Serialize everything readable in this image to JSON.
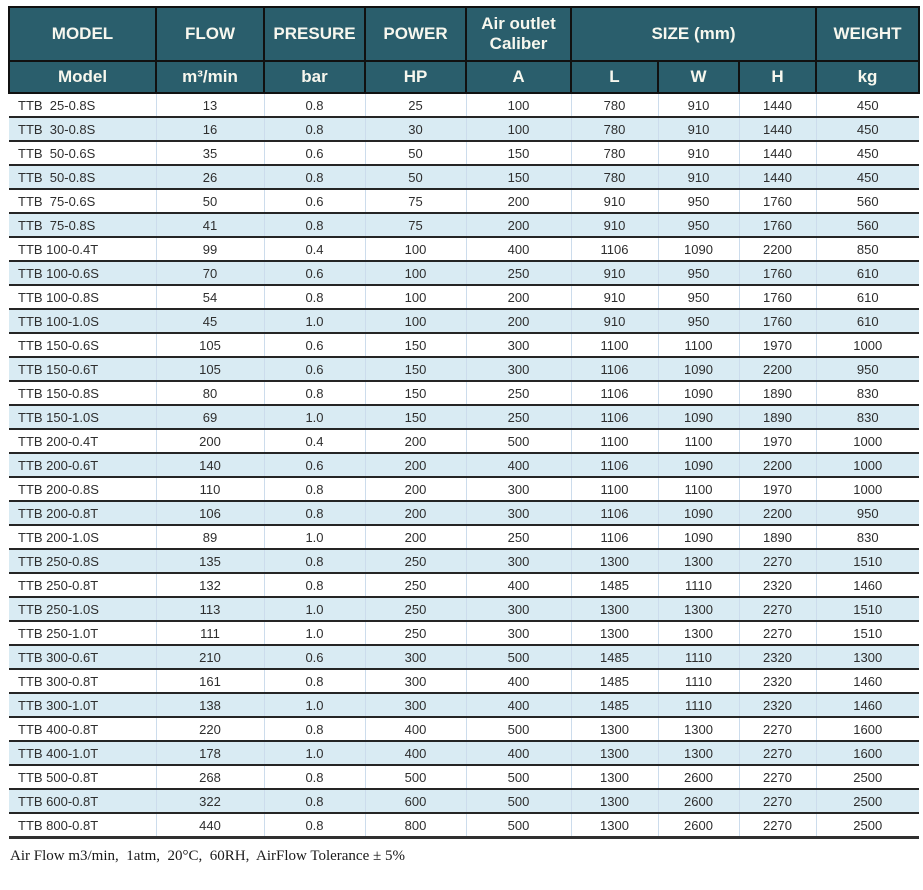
{
  "table": {
    "header_top": [
      {
        "label": "MODEL"
      },
      {
        "label": "FLOW"
      },
      {
        "label": "PRESURE"
      },
      {
        "label": "POWER"
      },
      {
        "label": "Air outlet Caliber"
      },
      {
        "label": "SIZE (mm)"
      },
      {
        "label": "WEIGHT"
      }
    ],
    "header_units": [
      "Model",
      "m³/min",
      "bar",
      "HP",
      "A",
      "L",
      "W",
      "H",
      "kg"
    ],
    "rows": [
      [
        "TTB  25-0.8S",
        "13",
        "0.8",
        "25",
        "100",
        "780",
        "910",
        "1440",
        "450"
      ],
      [
        "TTB  30-0.8S",
        "16",
        "0.8",
        "30",
        "100",
        "780",
        "910",
        "1440",
        "450"
      ],
      [
        "TTB  50-0.6S",
        "35",
        "0.6",
        "50",
        "150",
        "780",
        "910",
        "1440",
        "450"
      ],
      [
        "TTB  50-0.8S",
        "26",
        "0.8",
        "50",
        "150",
        "780",
        "910",
        "1440",
        "450"
      ],
      [
        "TTB  75-0.6S",
        "50",
        "0.6",
        "75",
        "200",
        "910",
        "950",
        "1760",
        "560"
      ],
      [
        "TTB  75-0.8S",
        "41",
        "0.8",
        "75",
        "200",
        "910",
        "950",
        "1760",
        "560"
      ],
      [
        "TTB 100-0.4T",
        "99",
        "0.4",
        "100",
        "400",
        "1106",
        "1090",
        "2200",
        "850"
      ],
      [
        "TTB 100-0.6S",
        "70",
        "0.6",
        "100",
        "250",
        "910",
        "950",
        "1760",
        "610"
      ],
      [
        "TTB 100-0.8S",
        "54",
        "0.8",
        "100",
        "200",
        "910",
        "950",
        "1760",
        "610"
      ],
      [
        "TTB 100-1.0S",
        "45",
        "1.0",
        "100",
        "200",
        "910",
        "950",
        "1760",
        "610"
      ],
      [
        "TTB 150-0.6S",
        "105",
        "0.6",
        "150",
        "300",
        "1100",
        "1100",
        "1970",
        "1000"
      ],
      [
        "TTB 150-0.6T",
        "105",
        "0.6",
        "150",
        "300",
        "1106",
        "1090",
        "2200",
        "950"
      ],
      [
        "TTB 150-0.8S",
        "80",
        "0.8",
        "150",
        "250",
        "1106",
        "1090",
        "1890",
        "830"
      ],
      [
        "TTB 150-1.0S",
        "69",
        "1.0",
        "150",
        "250",
        "1106",
        "1090",
        "1890",
        "830"
      ],
      [
        "TTB 200-0.4T",
        "200",
        "0.4",
        "200",
        "500",
        "1100",
        "1100",
        "1970",
        "1000"
      ],
      [
        "TTB 200-0.6T",
        "140",
        "0.6",
        "200",
        "400",
        "1106",
        "1090",
        "2200",
        "1000"
      ],
      [
        "TTB 200-0.8S",
        "110",
        "0.8",
        "200",
        "300",
        "1100",
        "1100",
        "1970",
        "1000"
      ],
      [
        "TTB 200-0.8T",
        "106",
        "0.8",
        "200",
        "300",
        "1106",
        "1090",
        "2200",
        "950"
      ],
      [
        "TTB 200-1.0S",
        "89",
        "1.0",
        "200",
        "250",
        "1106",
        "1090",
        "1890",
        "830"
      ],
      [
        "TTB 250-0.8S",
        "135",
        "0.8",
        "250",
        "300",
        "1300",
        "1300",
        "2270",
        "1510"
      ],
      [
        "TTB 250-0.8T",
        "132",
        "0.8",
        "250",
        "400",
        "1485",
        "1110",
        "2320",
        "1460"
      ],
      [
        "TTB 250-1.0S",
        "113",
        "1.0",
        "250",
        "300",
        "1300",
        "1300",
        "2270",
        "1510"
      ],
      [
        "TTB 250-1.0T",
        "111",
        "1.0",
        "250",
        "300",
        "1300",
        "1300",
        "2270",
        "1510"
      ],
      [
        "TTB 300-0.6T",
        "210",
        "0.6",
        "300",
        "500",
        "1485",
        "1110",
        "2320",
        "1300"
      ],
      [
        "TTB 300-0.8T",
        "161",
        "0.8",
        "300",
        "400",
        "1485",
        "1110",
        "2320",
        "1460"
      ],
      [
        "TTB 300-1.0T",
        "138",
        "1.0",
        "300",
        "400",
        "1485",
        "1110",
        "2320",
        "1460"
      ],
      [
        "TTB 400-0.8T",
        "220",
        "0.8",
        "400",
        "500",
        "1300",
        "1300",
        "2270",
        "1600"
      ],
      [
        "TTB 400-1.0T",
        "178",
        "1.0",
        "400",
        "400",
        "1300",
        "1300",
        "2270",
        "1600"
      ],
      [
        "TTB 500-0.8T",
        "268",
        "0.8",
        "500",
        "500",
        "1300",
        "2600",
        "2270",
        "2500"
      ],
      [
        "TTB 600-0.8T",
        "322",
        "0.8",
        "600",
        "500",
        "1300",
        "2600",
        "2270",
        "2500"
      ],
      [
        "TTB 800-0.8T",
        "440",
        "0.8",
        "800",
        "500",
        "1300",
        "2600",
        "2270",
        "2500"
      ]
    ]
  },
  "footer": {
    "note": "Air Flow m3/min,  1atm,  20°C,  60RH,  AirFlow Tolerance ± 5%"
  },
  "colors": {
    "header_bg": "#2a5e6c",
    "header_text": "#f7f7ee",
    "stripe_bg": "#d9ebf3",
    "grid_dark": "#252525",
    "grid_light": "#ccdcec"
  }
}
